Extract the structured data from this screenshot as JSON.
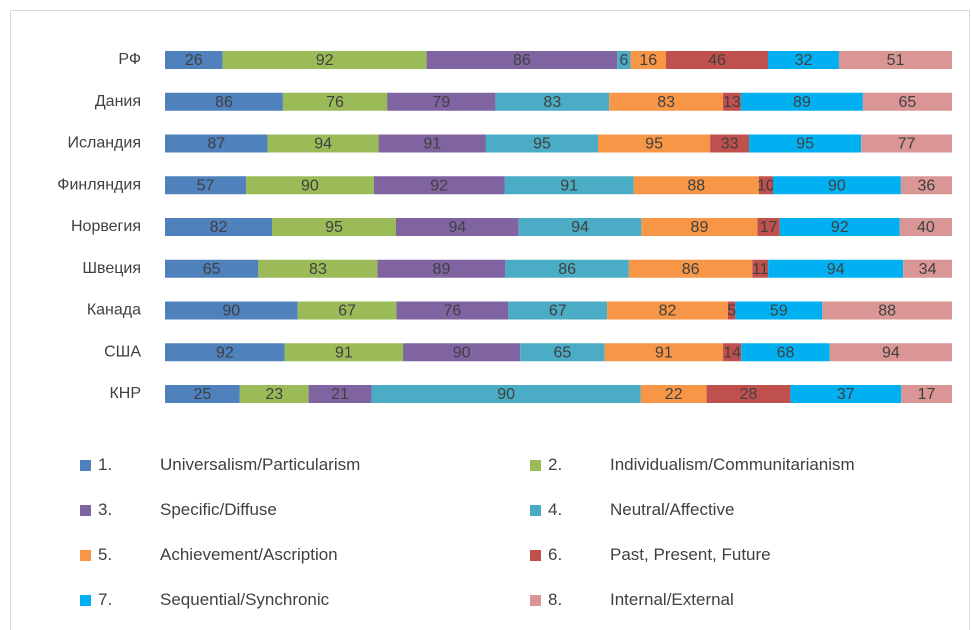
{
  "chart_data": {
    "type": "stacked_bar_100_horizontal",
    "categories": [
      "РФ",
      "Дания",
      "Исландия",
      "Финляндия",
      "Норвегия",
      "Швеция",
      "Канада",
      "США",
      "КНР"
    ],
    "series": [
      {
        "name": "1.\tUniversalism/Particularism",
        "color": "#4f81bd",
        "values": [
          26,
          86,
          87,
          57,
          82,
          65,
          90,
          92,
          25
        ]
      },
      {
        "name": "2.\tIndividualism/Communitarianism",
        "color": "#9bbb59",
        "values": [
          92,
          76,
          94,
          90,
          95,
          83,
          67,
          91,
          23
        ]
      },
      {
        "name": "3.\tSpecific/Diffuse",
        "color": "#8064a2",
        "values": [
          86,
          79,
          91,
          92,
          94,
          89,
          76,
          90,
          21
        ]
      },
      {
        "name": "4.\tNeutral/Affective",
        "color": "#4bacc6",
        "values": [
          6,
          83,
          95,
          91,
          94,
          86,
          67,
          65,
          90
        ]
      },
      {
        "name": "5.\tAchievement/Ascription",
        "color": "#f79646",
        "values": [
          16,
          83,
          95,
          88,
          89,
          86,
          82,
          91,
          22
        ]
      },
      {
        "name": "6.\tPast, Present, Future",
        "color": "#c0504d",
        "values": [
          46,
          13,
          33,
          10,
          17,
          11,
          5,
          14,
          28
        ]
      },
      {
        "name": "7.\tSequential/Synchronic",
        "color": "#00b0f0",
        "values": [
          32,
          89,
          95,
          90,
          92,
          94,
          59,
          68,
          37
        ]
      },
      {
        "name": "8.\tInternal/External",
        "color": "#d99694",
        "values": [
          51,
          65,
          77,
          36,
          40,
          34,
          88,
          94,
          17
        ]
      }
    ]
  }
}
